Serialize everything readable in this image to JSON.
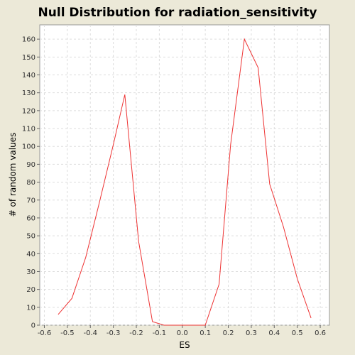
{
  "chart_data": {
    "type": "line",
    "title": "Null Distribution for radiation_sensitivity",
    "xlabel": "ES",
    "ylabel": "# of random values",
    "xlim": [
      -0.62,
      0.64
    ],
    "ylim": [
      0,
      168
    ],
    "xticks": [
      "-0.6",
      "-0.5",
      "-0.4",
      "-0.3",
      "-0.2",
      "-0.1",
      "0.0",
      "0.1",
      "0.2",
      "0.3",
      "0.4",
      "0.5",
      "0.6"
    ],
    "yticks": [
      "0",
      "10",
      "20",
      "30",
      "40",
      "50",
      "60",
      "70",
      "80",
      "90",
      "100",
      "110",
      "120",
      "130",
      "140",
      "150",
      "160"
    ],
    "grid": true,
    "series": [
      {
        "color": "#ee3333",
        "x": [
          -0.54,
          -0.48,
          -0.42,
          -0.36,
          -0.3,
          -0.25,
          -0.19,
          -0.13,
          -0.08,
          0.1,
          0.16,
          0.21,
          0.27,
          0.33,
          0.38,
          0.44,
          0.5,
          0.56
        ],
        "y": [
          6,
          15,
          38,
          69,
          101,
          129,
          47,
          2,
          0,
          0,
          23,
          101,
          160,
          144,
          79,
          55,
          26,
          4
        ]
      }
    ]
  }
}
